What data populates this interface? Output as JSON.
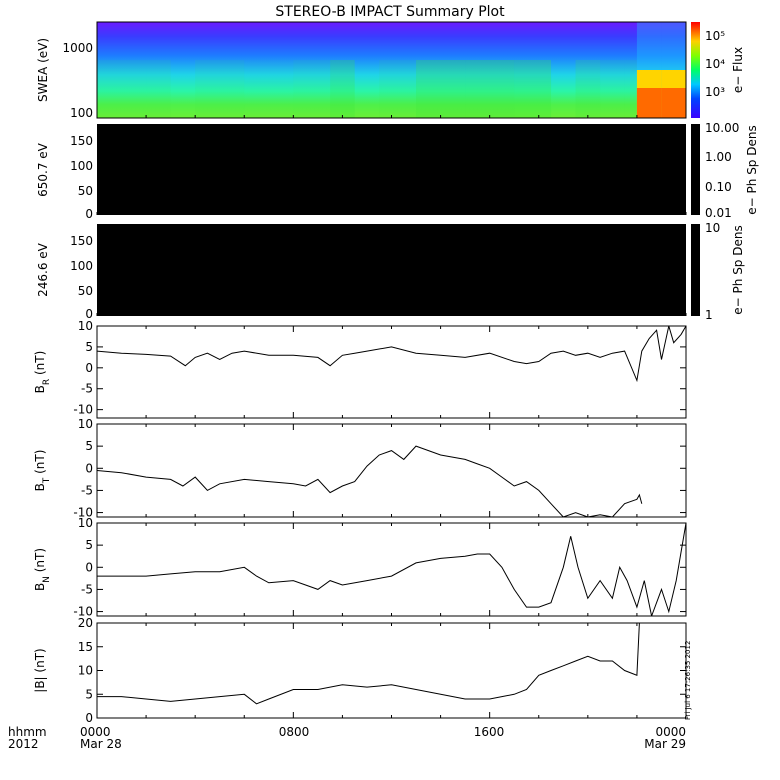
{
  "title": "STEREO-B IMPACT Summary Plot",
  "footer": {
    "left_top": "hhmm",
    "left_bottom": "2012",
    "ticks": [
      {
        "hhmm": "0000",
        "date": "Mar 28"
      },
      {
        "hhmm": "0800",
        "date": ""
      },
      {
        "hhmm": "1600",
        "date": ""
      },
      {
        "hhmm": "0000",
        "date": "Mar 29"
      }
    ]
  },
  "timestamp": "Fri Jul  6 17:26:35 2012",
  "colors": {
    "frame": "#000000",
    "line": "#000000",
    "panel_fill": "#000000",
    "background": "#ffffff"
  },
  "chart_data": [
    {
      "type": "heatmap",
      "ylabel": "SWEA (eV)",
      "yscale": "log",
      "ylim": [
        100,
        2000
      ],
      "yticks": [
        "1000",
        "100"
      ],
      "x_range_hours": [
        0,
        24
      ],
      "colorbar": {
        "label": "e− Flux",
        "scale": "log",
        "ticks": [
          "10⁵",
          "10⁴",
          "10³"
        ],
        "colormap": "rainbow"
      },
      "description_levels": {
        "x_hours": [
          0,
          2,
          3,
          4,
          6,
          8,
          9.5,
          10.5,
          11.5,
          13,
          15,
          17,
          18.5,
          19.5,
          20.5,
          21.5,
          22,
          23,
          24
        ],
        "peak_level": [
          0.55,
          0.55,
          0.5,
          0.55,
          0.52,
          0.55,
          0.65,
          0.5,
          0.55,
          0.68,
          0.68,
          0.66,
          0.5,
          0.6,
          0.55,
          0.55,
          1.0,
          1.0,
          1.0
        ]
      }
    },
    {
      "type": "heatmap",
      "ylabel": "650.7 eV",
      "ylim": [
        0,
        180
      ],
      "yticks": [
        "150",
        "100",
        "50",
        "0"
      ],
      "colorbar": {
        "label": "e− Ph Sp Dens",
        "scale": "log",
        "ticks": [
          "10.00",
          "1.00",
          "0.10",
          "0.01"
        ]
      },
      "values": "all below range (black)"
    },
    {
      "type": "heatmap",
      "ylabel": "246.6 eV",
      "ylim": [
        0,
        180
      ],
      "yticks": [
        "150",
        "100",
        "50",
        "0"
      ],
      "colorbar": {
        "label": "e− Ph Sp Dens",
        "scale": "log",
        "ticks": [
          "10",
          "1"
        ]
      },
      "values": "all below range (black)"
    },
    {
      "type": "line",
      "ylabel_main": "B",
      "ylabel_sub": "R",
      "ylabel_unit": " (nT)",
      "ylim": [
        -12,
        10
      ],
      "yticks": [
        "10",
        "5",
        "0",
        "-5",
        "-10"
      ],
      "x_hours": [
        0,
        1,
        2,
        3,
        3.6,
        4,
        4.5,
        5,
        5.5,
        6,
        7,
        8,
        9,
        9.5,
        10,
        10.5,
        11,
        12,
        13,
        14,
        15,
        16,
        17,
        17.5,
        18,
        18.5,
        19,
        19.5,
        20,
        20.5,
        21,
        21.5,
        22,
        22.2,
        22.5,
        22.8,
        23,
        23.3,
        23.5,
        23.8,
        24
      ],
      "values": [
        4,
        3.5,
        3.2,
        2.8,
        0.5,
        2.5,
        3.5,
        2,
        3.5,
        4,
        3,
        3,
        2.5,
        0.5,
        3,
        3.5,
        4,
        5,
        3.5,
        3,
        2.5,
        3.5,
        1.5,
        1,
        1.5,
        3.5,
        4,
        3,
        3.5,
        2.5,
        3.5,
        4,
        -3,
        4,
        7,
        9,
        2,
        10,
        6,
        8,
        10
      ]
    },
    {
      "type": "line",
      "ylabel_main": "B",
      "ylabel_sub": "T",
      "ylabel_unit": " (nT)",
      "ylim": [
        -11,
        10
      ],
      "yticks": [
        "10",
        "5",
        "0",
        "-5",
        "-10"
      ],
      "x_hours": [
        0,
        1,
        2,
        3,
        3.5,
        4,
        4.5,
        5,
        6,
        7,
        8,
        8.5,
        9,
        9.5,
        10,
        10.5,
        11,
        11.5,
        12,
        12.5,
        13,
        14,
        15,
        15.5,
        16,
        16.5,
        17,
        17.5,
        18,
        18.5,
        19,
        19.5,
        20,
        20.5,
        21,
        21.5,
        22,
        22.1,
        22.2
      ],
      "values": [
        -0.5,
        -1,
        -2,
        -2.5,
        -4,
        -2,
        -5,
        -3.5,
        -2.5,
        -3,
        -3.5,
        -4,
        -2.5,
        -5.5,
        -4,
        -3,
        0.5,
        3,
        4,
        2,
        5,
        3,
        2,
        1,
        0,
        -2,
        -4,
        -3,
        -5,
        -8,
        -11,
        -10,
        -11,
        -10.5,
        -11,
        -8,
        -7,
        -6,
        -8
      ]
    },
    {
      "type": "line",
      "ylabel_main": "B",
      "ylabel_sub": "N",
      "ylabel_unit": " (nT)",
      "ylim": [
        -11,
        10
      ],
      "yticks": [
        "10",
        "5",
        "0",
        "-5",
        "-10"
      ],
      "x_hours": [
        0,
        1,
        2,
        3,
        4,
        5,
        6,
        6.5,
        7,
        8,
        8.5,
        9,
        9.5,
        10,
        11,
        12,
        13,
        14,
        15,
        15.5,
        16,
        16.5,
        17,
        17.5,
        18,
        18.5,
        19,
        19.3,
        19.6,
        20,
        20.5,
        21,
        21.3,
        21.6,
        22,
        22.3,
        22.6,
        23,
        23.3,
        23.6,
        24
      ],
      "values": [
        -2,
        -2,
        -2,
        -1.5,
        -1,
        -1,
        0,
        -2,
        -3.5,
        -3,
        -4,
        -5,
        -3,
        -4,
        -3,
        -2,
        1,
        2,
        2.5,
        3,
        3,
        0,
        -5,
        -9,
        -9,
        -8,
        0,
        7,
        0,
        -7,
        -3,
        -7,
        0,
        -3,
        -9,
        -3,
        -11,
        -5,
        -10,
        -3,
        10
      ]
    },
    {
      "type": "line",
      "ylabel": "|B| (nT)",
      "ylim": [
        0,
        20
      ],
      "yticks": [
        "20",
        "15",
        "10",
        "5",
        "0"
      ],
      "x_hours": [
        0,
        1,
        2,
        3,
        4,
        5,
        6,
        6.5,
        7,
        8,
        9,
        10,
        11,
        12,
        13,
        14,
        15,
        16,
        16.5,
        17,
        17.5,
        18,
        18.5,
        19,
        19.5,
        20,
        20.5,
        21,
        21.5,
        22,
        22.1
      ],
      "values": [
        4.5,
        4.5,
        4,
        3.5,
        4,
        4.5,
        5,
        3,
        4,
        6,
        6,
        7,
        6.5,
        7,
        6,
        5,
        4,
        4,
        4.5,
        5,
        6,
        9,
        10,
        11,
        12,
        13,
        12,
        12,
        10,
        9,
        20
      ]
    }
  ]
}
